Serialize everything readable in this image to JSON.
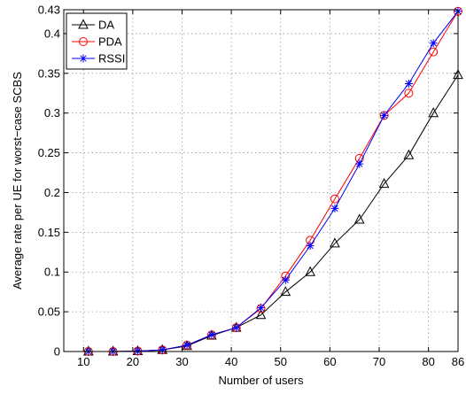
{
  "chart_data": {
    "type": "line",
    "xlabel": "Number of users",
    "ylabel": "Average rate per UE for worst−case SCBS",
    "xlim": [
      6,
      86
    ],
    "ylim": [
      0,
      0.43
    ],
    "x_ticks": [
      "10",
      "20",
      "30",
      "40",
      "50",
      "60",
      "70",
      "80",
      "86"
    ],
    "y_ticks": [
      "0",
      "0.05",
      "0.1",
      "0.15",
      "0.2",
      "0.25",
      "0.3",
      "0.35",
      "0.4",
      "0.43"
    ],
    "grid": true,
    "legend_position": "top-left",
    "x": [
      11,
      16,
      21,
      26,
      31,
      36,
      41,
      46,
      51,
      56,
      61,
      66,
      71,
      76,
      81,
      86
    ],
    "series": [
      {
        "name": "DA",
        "color": "#000000",
        "marker": "triangle",
        "values": [
          0.0,
          0.0,
          0.0005,
          0.002,
          0.007,
          0.02,
          0.03,
          0.046,
          0.075,
          0.1,
          0.136,
          0.166,
          0.211,
          0.247,
          0.3,
          0.348
        ]
      },
      {
        "name": "PDA",
        "color": "#ff0000",
        "marker": "circle",
        "values": [
          0.0,
          0.0,
          0.0005,
          0.002,
          0.008,
          0.021,
          0.03,
          0.054,
          0.095,
          0.14,
          0.192,
          0.243,
          0.297,
          0.325,
          0.377,
          0.428
        ]
      },
      {
        "name": "RSSI",
        "color": "#0000ff",
        "marker": "star",
        "values": [
          0.0,
          0.0,
          0.0005,
          0.002,
          0.008,
          0.021,
          0.03,
          0.055,
          0.09,
          0.133,
          0.18,
          0.236,
          0.297,
          0.337,
          0.388,
          0.428
        ]
      }
    ]
  }
}
